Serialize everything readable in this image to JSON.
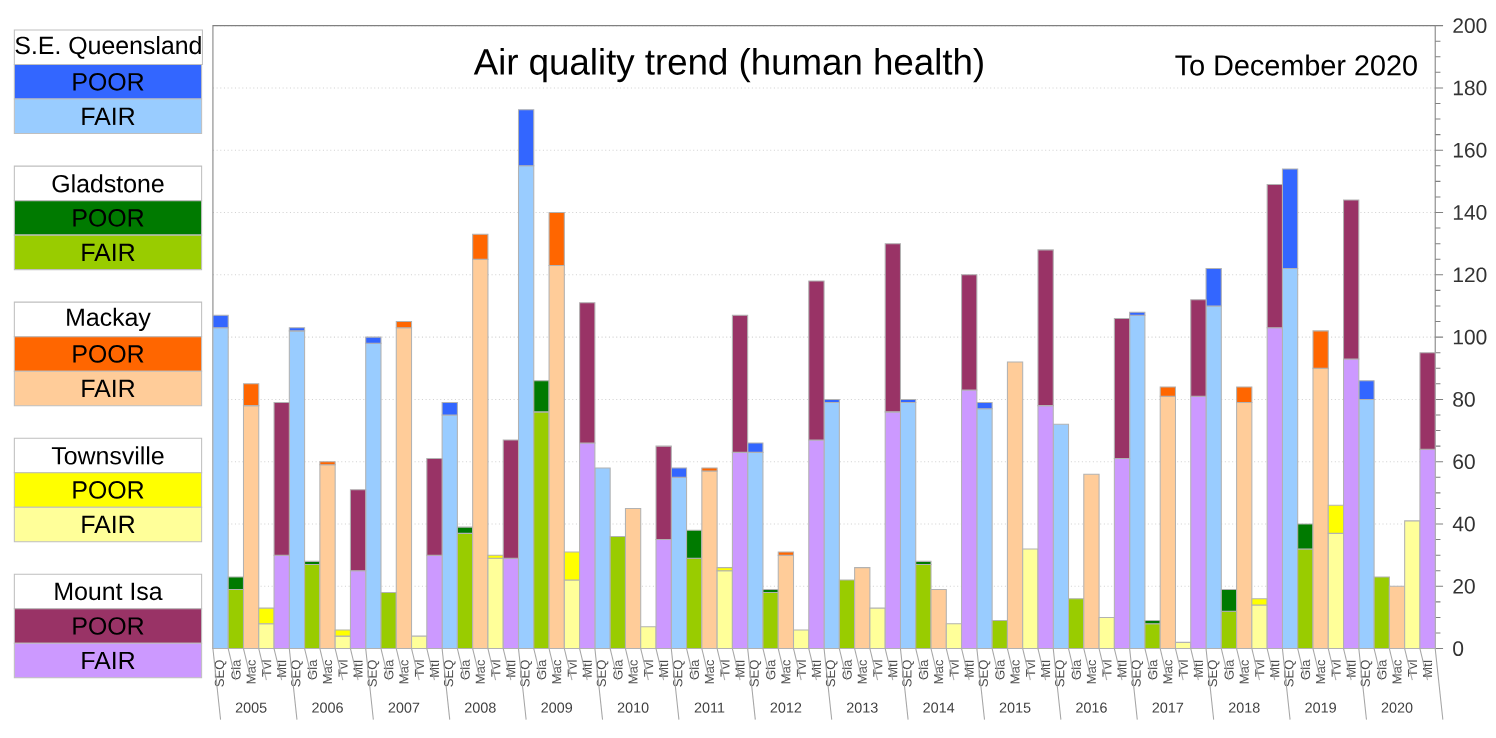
{
  "chart_data": {
    "type": "bar",
    "stacked": true,
    "title": "Air quality trend (human health)",
    "subtitle": "To December 2020",
    "categories": [
      "SEQ",
      "Gla",
      "Mac",
      "Tvl",
      "MtI",
      "SEQ",
      "Gla",
      "Mac",
      "Tvl",
      "MtI",
      "SEQ",
      "Gla",
      "Mac",
      "Tvl",
      "MtI",
      "SEQ",
      "Gla",
      "Mac",
      "Tvl",
      "MtI",
      "SEQ",
      "Gla",
      "Mac",
      "Tvl",
      "MtI",
      "SEQ",
      "Gla",
      "Mac",
      "Tvl",
      "MtI",
      "SEQ",
      "Gla",
      "Mac",
      "Tvl",
      "MtI",
      "SEQ",
      "Gla",
      "Mac",
      "Tvl",
      "MtI",
      "SEQ",
      "Gla",
      "Mac",
      "Tvl",
      "MtI",
      "SEQ",
      "Gla",
      "Mac",
      "Tvl",
      "MtI",
      "SEQ",
      "Gla",
      "Mac",
      "Tvl",
      "MtI",
      "SEQ",
      "Gla",
      "Mac",
      "Tvl",
      "MtI",
      "SEQ",
      "Gla",
      "Mac",
      "Tvl",
      "MtI",
      "SEQ",
      "Gla",
      "Mac",
      "Tvl",
      "MtI",
      "SEQ",
      "Gla",
      "Mac",
      "Tvl",
      "MtI",
      "SEQ",
      "Gla",
      "Mac",
      "Tvl",
      "MtI"
    ],
    "series": [
      {
        "name": "FAIR",
        "color": "#99ccff",
        "values": [
          103,
          null,
          null,
          null,
          null,
          102,
          null,
          null,
          null,
          null,
          98,
          null,
          null,
          null,
          null,
          75,
          null,
          null,
          null,
          null,
          155,
          null,
          null,
          null,
          null,
          58,
          null,
          null,
          null,
          null,
          55,
          null,
          null,
          null,
          null,
          63,
          null,
          null,
          null,
          null,
          79,
          null,
          null,
          null,
          null,
          79,
          null,
          null,
          null,
          null,
          77,
          null,
          null,
          null,
          null,
          72,
          null,
          null,
          null,
          null,
          107,
          null,
          null,
          null,
          null,
          110,
          null,
          null,
          null,
          null,
          122,
          null,
          null,
          null,
          null,
          80,
          null,
          null,
          null,
          null
        ]
      },
      {
        "name": "POOR",
        "color": "#3366ff",
        "values": [
          4,
          null,
          null,
          null,
          null,
          1,
          null,
          null,
          null,
          null,
          2,
          null,
          null,
          null,
          null,
          4,
          null,
          null,
          null,
          null,
          18,
          null,
          null,
          null,
          null,
          null,
          null,
          null,
          null,
          null,
          3,
          null,
          null,
          null,
          null,
          3,
          null,
          null,
          null,
          null,
          1,
          null,
          null,
          null,
          null,
          1,
          null,
          null,
          null,
          null,
          2,
          null,
          null,
          null,
          null,
          null,
          null,
          null,
          null,
          null,
          1,
          null,
          null,
          null,
          null,
          12,
          null,
          null,
          null,
          null,
          32,
          null,
          null,
          null,
          null,
          6,
          null,
          null,
          null,
          null
        ]
      },
      {
        "name": "FAIR",
        "color": "#99cc00",
        "values": [
          null,
          19,
          null,
          null,
          null,
          null,
          27,
          null,
          null,
          null,
          null,
          18,
          null,
          null,
          null,
          null,
          37,
          null,
          null,
          null,
          null,
          76,
          null,
          null,
          null,
          null,
          36,
          null,
          null,
          null,
          null,
          29,
          null,
          null,
          null,
          null,
          18,
          null,
          null,
          null,
          null,
          22,
          null,
          null,
          null,
          null,
          27,
          null,
          null,
          null,
          null,
          9,
          null,
          null,
          null,
          null,
          16,
          null,
          null,
          null,
          null,
          8,
          null,
          null,
          null,
          null,
          12,
          null,
          null,
          null,
          null,
          32,
          null,
          null,
          null,
          null,
          23,
          null,
          null,
          null
        ]
      },
      {
        "name": "POOR",
        "color": "#007a00",
        "values": [
          null,
          4,
          null,
          null,
          null,
          null,
          1,
          null,
          null,
          null,
          null,
          null,
          null,
          null,
          null,
          null,
          2,
          null,
          null,
          null,
          null,
          10,
          null,
          null,
          null,
          null,
          null,
          null,
          null,
          null,
          null,
          9,
          null,
          null,
          null,
          null,
          1,
          null,
          null,
          null,
          null,
          null,
          null,
          null,
          null,
          null,
          1,
          null,
          null,
          null,
          null,
          null,
          null,
          null,
          null,
          null,
          null,
          null,
          null,
          null,
          null,
          1,
          null,
          null,
          null,
          null,
          7,
          null,
          null,
          null,
          null,
          8,
          null,
          null,
          null,
          null,
          null,
          null,
          null,
          null
        ]
      },
      {
        "name": "FAIR",
        "color": "#ffcc99",
        "values": [
          null,
          null,
          78,
          null,
          null,
          null,
          null,
          59,
          null,
          null,
          null,
          null,
          103,
          null,
          null,
          null,
          null,
          125,
          null,
          null,
          null,
          null,
          123,
          null,
          null,
          null,
          null,
          45,
          null,
          null,
          null,
          null,
          57,
          null,
          null,
          null,
          null,
          30,
          null,
          null,
          null,
          null,
          26,
          null,
          null,
          null,
          null,
          19,
          null,
          null,
          null,
          null,
          92,
          null,
          null,
          null,
          null,
          56,
          null,
          null,
          null,
          null,
          81,
          null,
          null,
          null,
          null,
          79,
          null,
          null,
          null,
          null,
          90,
          null,
          null,
          null,
          null,
          20,
          null,
          null
        ]
      },
      {
        "name": "POOR",
        "color": "#ff6600",
        "values": [
          null,
          null,
          7,
          null,
          null,
          null,
          null,
          1,
          null,
          null,
          null,
          null,
          2,
          null,
          null,
          null,
          null,
          8,
          null,
          null,
          null,
          null,
          17,
          null,
          null,
          null,
          null,
          null,
          null,
          null,
          null,
          null,
          1,
          null,
          null,
          null,
          null,
          1,
          null,
          null,
          null,
          null,
          null,
          null,
          null,
          null,
          null,
          null,
          null,
          null,
          null,
          null,
          null,
          null,
          null,
          null,
          null,
          null,
          null,
          null,
          null,
          null,
          3,
          null,
          null,
          null,
          null,
          5,
          null,
          null,
          null,
          null,
          12,
          null,
          null,
          null,
          null,
          null,
          null,
          null
        ]
      },
      {
        "name": "FAIR",
        "color": "#ffff99",
        "values": [
          null,
          null,
          null,
          8,
          null,
          null,
          null,
          null,
          4,
          null,
          null,
          null,
          null,
          4,
          null,
          null,
          null,
          null,
          29,
          null,
          null,
          null,
          null,
          22,
          null,
          null,
          null,
          null,
          7,
          null,
          null,
          null,
          null,
          25,
          null,
          null,
          null,
          null,
          6,
          null,
          null,
          null,
          null,
          13,
          null,
          null,
          null,
          null,
          8,
          null,
          null,
          null,
          null,
          32,
          null,
          null,
          null,
          null,
          10,
          null,
          null,
          null,
          null,
          2,
          null,
          null,
          null,
          null,
          14,
          null,
          null,
          null,
          null,
          37,
          null,
          null,
          null,
          null,
          41,
          null
        ]
      },
      {
        "name": "POOR",
        "color": "#ffff00",
        "values": [
          null,
          null,
          null,
          5,
          null,
          null,
          null,
          null,
          2,
          null,
          null,
          null,
          null,
          null,
          null,
          null,
          null,
          null,
          1,
          null,
          null,
          null,
          null,
          9,
          null,
          null,
          null,
          null,
          null,
          null,
          null,
          null,
          null,
          1,
          null,
          null,
          null,
          null,
          null,
          null,
          null,
          null,
          null,
          null,
          null,
          null,
          null,
          null,
          null,
          null,
          null,
          null,
          null,
          null,
          null,
          null,
          null,
          null,
          null,
          null,
          null,
          null,
          null,
          null,
          null,
          null,
          null,
          null,
          2,
          null,
          null,
          null,
          null,
          9,
          null,
          null,
          null,
          null,
          null,
          null
        ]
      },
      {
        "name": "FAIR",
        "color": "#cc99ff",
        "values": [
          null,
          null,
          null,
          null,
          30,
          null,
          null,
          null,
          null,
          25,
          null,
          null,
          null,
          null,
          30,
          null,
          null,
          null,
          null,
          29,
          null,
          null,
          null,
          null,
          66,
          null,
          null,
          null,
          null,
          35,
          null,
          null,
          null,
          null,
          63,
          null,
          null,
          null,
          null,
          67,
          null,
          null,
          null,
          null,
          76,
          null,
          null,
          null,
          null,
          83,
          null,
          null,
          null,
          null,
          78,
          null,
          null,
          null,
          null,
          61,
          null,
          null,
          null,
          null,
          81,
          null,
          null,
          null,
          null,
          103,
          null,
          null,
          null,
          null,
          93,
          null,
          null,
          null,
          null,
          64
        ]
      },
      {
        "name": "POOR",
        "color": "#993366",
        "values": [
          null,
          null,
          null,
          null,
          49,
          null,
          null,
          null,
          null,
          26,
          null,
          null,
          null,
          null,
          31,
          null,
          null,
          null,
          null,
          38,
          null,
          null,
          null,
          null,
          45,
          null,
          null,
          null,
          null,
          30,
          null,
          null,
          null,
          null,
          44,
          null,
          null,
          null,
          null,
          51,
          null,
          null,
          null,
          null,
          54,
          null,
          null,
          null,
          null,
          37,
          null,
          null,
          null,
          null,
          50,
          null,
          null,
          null,
          null,
          45,
          null,
          null,
          null,
          null,
          31,
          null,
          null,
          null,
          null,
          46,
          null,
          null,
          null,
          null,
          51,
          null,
          null,
          null,
          null,
          31
        ]
      }
    ],
    "annotations": [
      "S.E. Queensland",
      "Gladstone",
      "Mackay",
      "Townsville",
      "Mount Isa",
      {
        "text": "2005"
      },
      {
        "text": "2006"
      },
      {
        "text": "2007"
      },
      {
        "text": "2008"
      },
      {
        "text": "2009"
      },
      {
        "text": "2010"
      },
      {
        "text": "2011"
      },
      {
        "text": "2012"
      },
      {
        "text": "2013"
      },
      {
        "text": "2014"
      },
      {
        "text": "2015"
      },
      {
        "text": "2016"
      },
      {
        "text": "2017"
      },
      {
        "text": "2018"
      },
      {
        "text": "2019"
      },
      {
        "text": "2020"
      }
    ],
    "ylim": [
      0,
      200
    ],
    "yticks": [
      0,
      20,
      40,
      60,
      80,
      100,
      120,
      140,
      160,
      180,
      200
    ],
    "grid": "y",
    "legend": "left"
  }
}
